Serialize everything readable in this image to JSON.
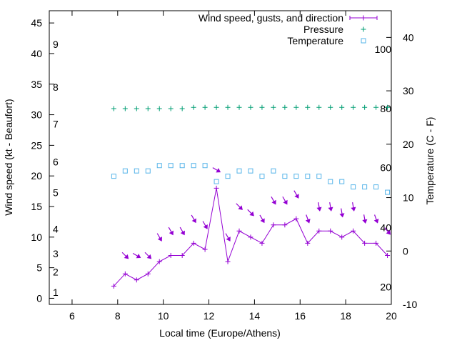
{
  "chart_data": {
    "type": "line",
    "xlabel": "Local time (Europe/Athens)",
    "ylabel": "Wind speed (kt - Beaufort)",
    "y2label": "Temperature (C - F)",
    "xlim": [
      5,
      20
    ],
    "ylim": [
      -1,
      47
    ],
    "y2lim": [
      -10,
      45
    ],
    "x_ticks": [
      "6",
      "8",
      "10",
      "12",
      "14",
      "16",
      "18",
      "20"
    ],
    "x_tick_values": [
      6,
      8,
      10,
      12,
      14,
      16,
      18,
      20
    ],
    "y_ticks": [
      "0",
      "5",
      "10",
      "15",
      "20",
      "25",
      "30",
      "35",
      "40",
      "45"
    ],
    "y_tick_values": [
      0,
      5,
      10,
      15,
      20,
      25,
      30,
      35,
      40,
      45
    ],
    "y2_ticks": [
      "-10",
      "0",
      "10",
      "20",
      "30",
      "40"
    ],
    "y2_tick_values": [
      -10,
      0,
      10,
      20,
      30,
      40
    ],
    "beaufort_labels": [
      {
        "text": "1",
        "y": 1
      },
      {
        "text": "2",
        "y": 4.3
      },
      {
        "text": "3",
        "y": 7.3
      },
      {
        "text": "4",
        "y": 11.3
      },
      {
        "text": "5",
        "y": 17.3
      },
      {
        "text": "6",
        "y": 22.3
      },
      {
        "text": "7",
        "y": 28.5
      },
      {
        "text": "8",
        "y": 34.5
      },
      {
        "text": "9",
        "y": 41.5
      }
    ],
    "fahrenheit_labels": [
      {
        "text": "100",
        "y2": 37.8
      },
      {
        "text": "80",
        "y2": 26.7
      },
      {
        "text": "60",
        "y2": 15.6
      },
      {
        "text": "40",
        "y2": 4.4
      },
      {
        "text": "20",
        "y2": -6.7
      }
    ],
    "x": [
      7.83,
      8.33,
      8.83,
      9.33,
      9.83,
      10.33,
      10.83,
      11.33,
      11.83,
      12.33,
      12.83,
      13.33,
      13.83,
      14.33,
      14.83,
      15.33,
      15.83,
      16.33,
      16.83,
      17.33,
      17.83,
      18.33,
      18.83,
      19.33,
      19.83
    ],
    "series": [
      {
        "name": "Wind speed, gusts, and direction",
        "color": "#9400d3",
        "marker": "+",
        "values": [
          2,
          4,
          3,
          4,
          6,
          7,
          7,
          9,
          8,
          18,
          6,
          11,
          10,
          9,
          12,
          12,
          13,
          9,
          11,
          11,
          10,
          11,
          9,
          9,
          7
        ],
        "gusts": [
          null,
          7,
          7,
          7,
          10,
          11,
          11,
          13,
          12,
          21,
          10,
          15,
          14,
          13,
          16,
          16,
          17,
          13,
          15,
          15,
          14,
          15,
          13,
          13,
          11
        ],
        "arrow_direction_deg": [
          null,
          45,
          60,
          45,
          30,
          30,
          30,
          30,
          30,
          60,
          30,
          45,
          45,
          30,
          30,
          30,
          30,
          20,
          10,
          10,
          10,
          10,
          10,
          20,
          40
        ]
      },
      {
        "name": "Pressure",
        "color": "#009e73",
        "marker": "+",
        "axis": "y",
        "values": [
          31,
          31,
          31,
          31,
          31,
          31,
          31,
          31.2,
          31.2,
          31.2,
          31.2,
          31.2,
          31.2,
          31.2,
          31.2,
          31.2,
          31.2,
          31.2,
          31.2,
          31.2,
          31.2,
          31.2,
          31.2,
          31.2,
          31.2
        ]
      },
      {
        "name": "Temperature",
        "color": "#56b4e9",
        "marker": "square",
        "axis": "y2",
        "values": [
          14,
          15,
          15,
          15,
          16,
          16,
          16,
          16,
          16,
          13,
          14,
          15,
          15,
          14,
          15,
          14,
          14,
          14,
          14,
          13,
          13,
          12,
          12,
          12,
          11
        ]
      }
    ],
    "legend_placement": "top-right",
    "grid": false
  }
}
